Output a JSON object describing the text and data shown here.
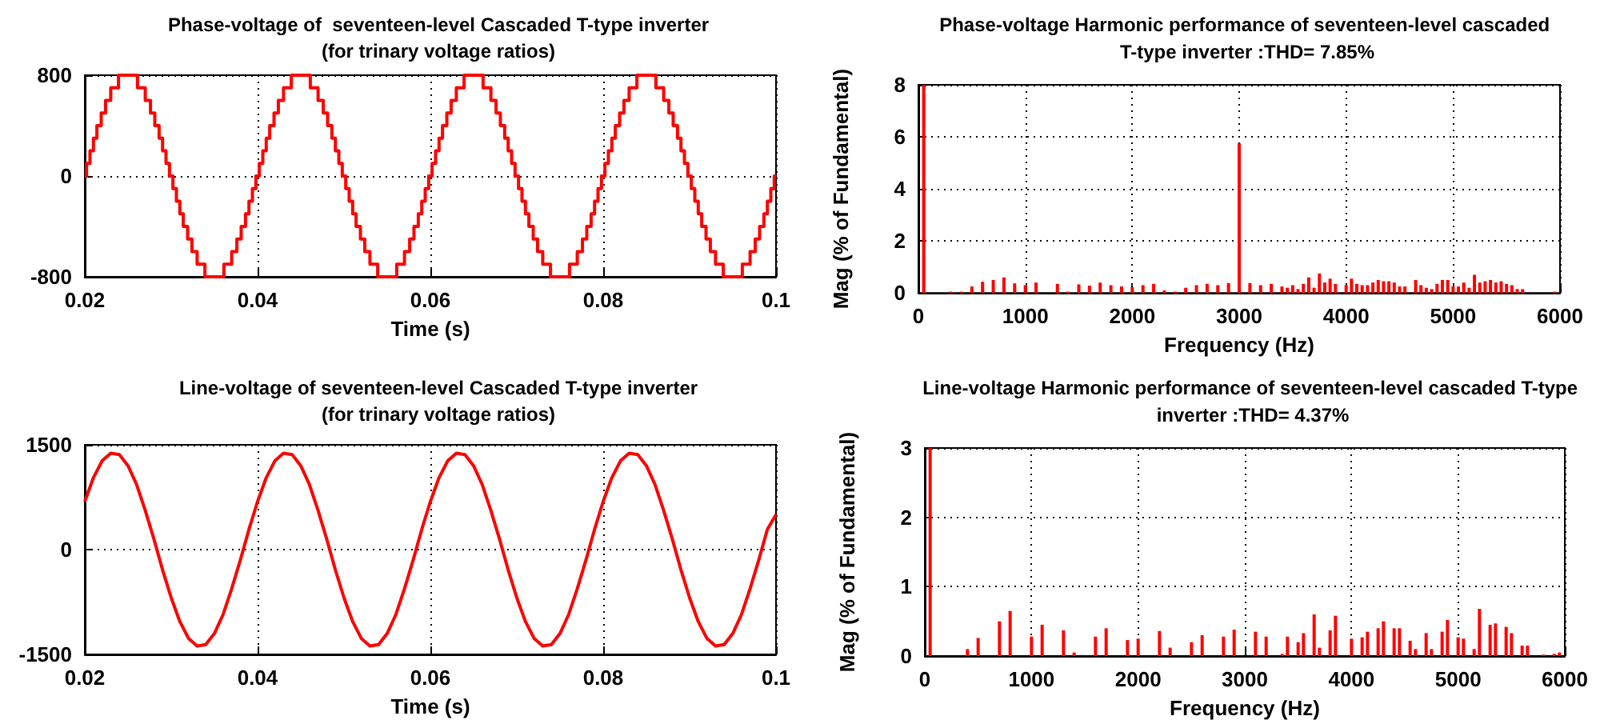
{
  "chart_data": [
    {
      "type": "step",
      "title": "Phase-voltage of  seventeen-level Cascaded T-type inverter",
      "subtitle": "(for trinary voltage ratios)",
      "xlabel": "Time (s)",
      "color": "#ff0000",
      "grid": true,
      "xlim": [
        0.02,
        0.1
      ],
      "xticks": [
        0.02,
        0.04,
        0.06,
        0.08,
        0.1
      ],
      "ylim": [
        -800,
        800
      ],
      "yticks": [
        -800,
        0,
        800
      ],
      "x": [
        0.02,
        0.0202,
        0.0206,
        0.021,
        0.0214,
        0.0219,
        0.0224,
        0.023,
        0.0239,
        0.0261,
        0.027,
        0.0276,
        0.0281,
        0.0286,
        0.029,
        0.0294,
        0.0298,
        0.0302,
        0.0306,
        0.031,
        0.0314,
        0.0319,
        0.0324,
        0.033,
        0.0339,
        0.0361,
        0.037,
        0.0376,
        0.0381,
        0.0386,
        0.039,
        0.0394,
        0.0398,
        0.0402,
        0.0406,
        0.041,
        0.0414,
        0.0419,
        0.0424,
        0.043,
        0.0439,
        0.0461,
        0.047,
        0.0476,
        0.0481,
        0.0486,
        0.049,
        0.0494,
        0.0498,
        0.0502,
        0.0506,
        0.051,
        0.0514,
        0.0519,
        0.0524,
        0.053,
        0.0539,
        0.0561,
        0.057,
        0.0576,
        0.0581,
        0.0586,
        0.059,
        0.0594,
        0.0598,
        0.0602,
        0.0606,
        0.061,
        0.0614,
        0.0619,
        0.0624,
        0.063,
        0.0639,
        0.0661,
        0.067,
        0.0676,
        0.0681,
        0.0686,
        0.069,
        0.0694,
        0.0698,
        0.0702,
        0.0706,
        0.071,
        0.0714,
        0.0719,
        0.0724,
        0.073,
        0.0739,
        0.0761,
        0.077,
        0.0776,
        0.0781,
        0.0786,
        0.079,
        0.0794,
        0.0798,
        0.0802,
        0.0806,
        0.081,
        0.0814,
        0.0819,
        0.0824,
        0.083,
        0.0839,
        0.0861,
        0.087,
        0.0876,
        0.0881,
        0.0886,
        0.089,
        0.0894,
        0.0898,
        0.0902,
        0.0906,
        0.091,
        0.0914,
        0.0919,
        0.0924,
        0.093,
        0.0939,
        0.0961,
        0.097,
        0.0976,
        0.0981,
        0.0986,
        0.099,
        0.0994,
        0.0998,
        0.1
      ],
      "values": [
        0,
        100,
        200,
        300,
        400,
        500,
        600,
        700,
        800,
        700,
        600,
        500,
        400,
        300,
        200,
        100,
        0,
        -100,
        -200,
        -300,
        -400,
        -500,
        -600,
        -700,
        -800,
        -700,
        -600,
        -500,
        -400,
        -300,
        -200,
        -100,
        0,
        100,
        200,
        300,
        400,
        500,
        600,
        700,
        800,
        700,
        600,
        500,
        400,
        300,
        200,
        100,
        0,
        -100,
        -200,
        -300,
        -400,
        -500,
        -600,
        -700,
        -800,
        -700,
        -600,
        -500,
        -400,
        -300,
        -200,
        -100,
        0,
        100,
        200,
        300,
        400,
        500,
        600,
        700,
        800,
        700,
        600,
        500,
        400,
        300,
        200,
        100,
        0,
        -100,
        -200,
        -300,
        -400,
        -500,
        -600,
        -700,
        -800,
        -700,
        -600,
        -500,
        -400,
        -300,
        -200,
        -100,
        0,
        100,
        200,
        300,
        400,
        500,
        600,
        700,
        800,
        700,
        600,
        500,
        400,
        300,
        200,
        100,
        0,
        -100,
        -200,
        -300,
        -400,
        -500,
        -600,
        -700,
        -800,
        -700,
        -600,
        -500,
        -400,
        -300,
        -200,
        -100,
        0,
        0
      ]
    },
    {
      "type": "bar",
      "title": "Phase-voltage Harmonic performance of seventeen-level cascaded T-type inverter :THD= 7.85%",
      "xlabel": "Frequency (Hz)",
      "ylabel": "Mag (% of Fundamental)",
      "color": "#ff0000",
      "grid": true,
      "xlim": [
        0,
        6000
      ],
      "xticks": [
        0,
        1000,
        2000,
        3000,
        4000,
        5000,
        6000
      ],
      "ylim": [
        0,
        8
      ],
      "yticks": [
        0,
        2,
        4,
        6,
        8
      ],
      "x": [
        50,
        300,
        400,
        500,
        600,
        700,
        800,
        900,
        1000,
        1100,
        1300,
        1400,
        1500,
        1600,
        1700,
        1800,
        1900,
        2000,
        2100,
        2200,
        2300,
        2400,
        2500,
        2600,
        2700,
        2800,
        2900,
        3000,
        3100,
        3200,
        3300,
        3400,
        3450,
        3500,
        3550,
        3600,
        3650,
        3700,
        3750,
        3800,
        3850,
        3900,
        4000,
        4050,
        4100,
        4150,
        4200,
        4250,
        4300,
        4350,
        4400,
        4450,
        4500,
        4550,
        4650,
        4700,
        4750,
        4800,
        4850,
        4900,
        4950,
        5000,
        5050,
        5100,
        5150,
        5200,
        5250,
        5300,
        5350,
        5400,
        5450,
        5500,
        5550,
        5600,
        5650,
        5950
      ],
      "values": [
        8,
        0.05,
        0.05,
        0.25,
        0.43,
        0.5,
        0.6,
        0.37,
        0.3,
        0.4,
        0.35,
        0.05,
        0.33,
        0.28,
        0.4,
        0.3,
        0.25,
        0.22,
        0.3,
        0.35,
        0.1,
        0.05,
        0.2,
        0.3,
        0.35,
        0.3,
        0.38,
        5.75,
        0.38,
        0.3,
        0.35,
        0.25,
        0.2,
        0.3,
        0.15,
        0.35,
        0.6,
        0.2,
        0.75,
        0.4,
        0.55,
        0.35,
        0.3,
        0.55,
        0.35,
        0.3,
        0.3,
        0.4,
        0.5,
        0.45,
        0.45,
        0.4,
        0.25,
        0.25,
        0.5,
        0.3,
        0.2,
        0.15,
        0.35,
        0.5,
        0.5,
        0.25,
        0.25,
        0.4,
        0.2,
        0.7,
        0.4,
        0.45,
        0.5,
        0.4,
        0.45,
        0.35,
        0.3,
        0.15,
        0.15,
        0.05
      ]
    },
    {
      "type": "line",
      "title": "Line-voltage of seventeen-level Cascaded T-type inverter",
      "subtitle": "(for trinary voltage ratios)",
      "xlabel": "Time (s)",
      "color": "#ff0000",
      "grid": true,
      "xlim": [
        0.02,
        0.1
      ],
      "xticks": [
        0.02,
        0.04,
        0.06,
        0.08,
        0.1
      ],
      "ylim": [
        -1500,
        1500
      ],
      "yticks": [
        -1500,
        0,
        1500
      ],
      "x": [
        0.02,
        0.021,
        0.022,
        0.023,
        0.024,
        0.025,
        0.026,
        0.027,
        0.028,
        0.029,
        0.03,
        0.031,
        0.032,
        0.033,
        0.034,
        0.035,
        0.036,
        0.037,
        0.038,
        0.039,
        0.04,
        0.041,
        0.042,
        0.043,
        0.044,
        0.045,
        0.046,
        0.047,
        0.048,
        0.049,
        0.05,
        0.051,
        0.052,
        0.053,
        0.054,
        0.055,
        0.056,
        0.057,
        0.058,
        0.059,
        0.06,
        0.061,
        0.062,
        0.063,
        0.064,
        0.065,
        0.066,
        0.067,
        0.068,
        0.069,
        0.07,
        0.071,
        0.072,
        0.073,
        0.074,
        0.075,
        0.076,
        0.077,
        0.078,
        0.079,
        0.08,
        0.081,
        0.082,
        0.083,
        0.084,
        0.085,
        0.086,
        0.087,
        0.088,
        0.089,
        0.09,
        0.091,
        0.092,
        0.093,
        0.094,
        0.095,
        0.096,
        0.097,
        0.098,
        0.099,
        0.1
      ],
      "values": [
        690,
        1030,
        1270,
        1380,
        1360,
        1200,
        930,
        560,
        150,
        -290,
        -690,
        -1030,
        -1270,
        -1380,
        -1360,
        -1200,
        -930,
        -560,
        -150,
        290,
        690,
        1030,
        1270,
        1380,
        1360,
        1200,
        930,
        560,
        150,
        -290,
        -690,
        -1030,
        -1270,
        -1380,
        -1360,
        -1200,
        -930,
        -560,
        -150,
        290,
        690,
        1030,
        1270,
        1380,
        1360,
        1200,
        930,
        560,
        150,
        -290,
        -690,
        -1030,
        -1270,
        -1380,
        -1360,
        -1200,
        -930,
        -560,
        -150,
        290,
        690,
        1030,
        1270,
        1380,
        1360,
        1200,
        930,
        560,
        150,
        -290,
        -690,
        -1030,
        -1270,
        -1380,
        -1360,
        -1200,
        -930,
        -560,
        -150,
        290,
        500
      ]
    },
    {
      "type": "bar",
      "title": "Line-voltage Harmonic performance of seventeen-level cascaded T-type inverter :THD= 4.37%",
      "xlabel": "Frequency (Hz)",
      "ylabel": "Mag (% of Fundamental)",
      "color": "#ff0000",
      "grid": true,
      "xlim": [
        0,
        6000
      ],
      "xticks": [
        0,
        1000,
        2000,
        3000,
        4000,
        5000,
        6000
      ],
      "ylim": [
        0,
        3
      ],
      "yticks": [
        0,
        1,
        2,
        3
      ],
      "x": [
        50,
        400,
        500,
        700,
        800,
        1000,
        1100,
        1300,
        1400,
        1600,
        1700,
        1900,
        2000,
        2200,
        2300,
        2500,
        2600,
        2800,
        2900,
        3100,
        3200,
        3350,
        3400,
        3500,
        3550,
        3650,
        3700,
        3800,
        3850,
        4000,
        4100,
        4150,
        4250,
        4300,
        4400,
        4450,
        4550,
        4600,
        4700,
        4750,
        4850,
        4900,
        5000,
        5050,
        5150,
        5200,
        5300,
        5350,
        5450,
        5500,
        5600,
        5650,
        5800,
        5900,
        5950
      ],
      "values": [
        3,
        0.1,
        0.26,
        0.5,
        0.65,
        0.28,
        0.45,
        0.37,
        0.05,
        0.28,
        0.4,
        0.23,
        0.25,
        0.36,
        0.12,
        0.2,
        0.3,
        0.28,
        0.38,
        0.35,
        0.28,
        0.03,
        0.28,
        0.2,
        0.33,
        0.6,
        0.12,
        0.37,
        0.58,
        0.25,
        0.27,
        0.35,
        0.4,
        0.5,
        0.4,
        0.4,
        0.22,
        0.1,
        0.33,
        0.1,
        0.35,
        0.52,
        0.27,
        0.25,
        0.1,
        0.68,
        0.45,
        0.47,
        0.42,
        0.33,
        0.15,
        0.15,
        0.02,
        0.03,
        0.05
      ]
    }
  ]
}
